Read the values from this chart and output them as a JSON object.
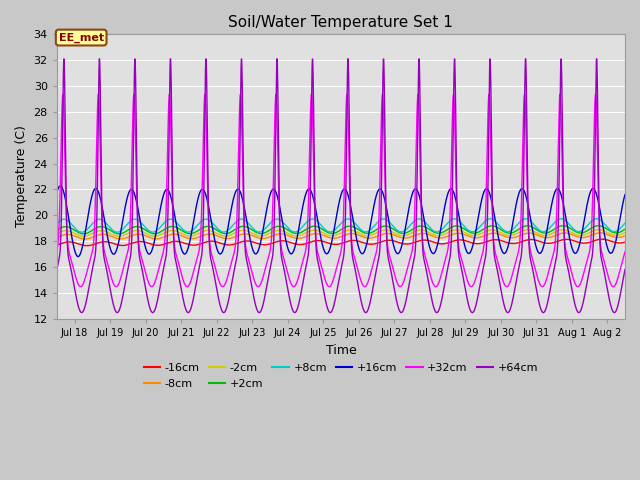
{
  "title": "Soil/Water Temperature Set 1",
  "xlabel": "Time",
  "ylabel": "Temperature (C)",
  "ylim": [
    12,
    34
  ],
  "yticks": [
    12,
    14,
    16,
    18,
    20,
    22,
    24,
    26,
    28,
    30,
    32,
    34
  ],
  "fig_facecolor": "#c8c8c8",
  "ax_facecolor": "#e0e0e0",
  "annotation_text": "EE_met",
  "annotation_bg": "#ffff99",
  "annotation_border": "#8B4513",
  "annotation_text_color": "#8B0000",
  "colors": {
    "-16cm": "#ff0000",
    "-8cm": "#ff8800",
    "-2cm": "#cccc00",
    "+2cm": "#00bb00",
    "+8cm": "#00cccc",
    "+16cm": "#0000cc",
    "+32cm": "#ff00ff",
    "+64cm": "#9900bb"
  },
  "xtick_days": [
    18,
    19,
    20,
    21,
    22,
    23,
    24,
    25,
    26,
    27,
    28,
    29,
    30,
    31,
    32,
    33
  ],
  "xtick_labels": [
    "Jul 18",
    "Jul 19",
    "Jul 20",
    "Jul 21",
    "Jul 22",
    "Jul 23",
    "Jul 24",
    "Jul 25",
    "Jul 26",
    "Jul 27",
    "Jul 28",
    "Jul 29",
    "Jul 30",
    "Jul 31",
    "Aug 1",
    "Aug 2"
  ],
  "xlim": [
    17.5,
    33.5
  ]
}
